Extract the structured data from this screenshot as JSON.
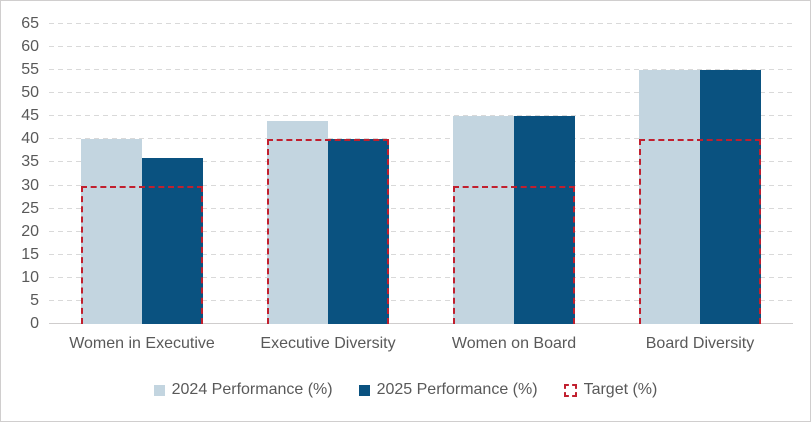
{
  "chart": {
    "background": "#ffffff",
    "frame_border_color": "#d0cece",
    "text_color": "#595959",
    "gridline_color": "#d9d9d9",
    "axis_line_color": "#cfcdcd"
  },
  "chart_data": {
    "type": "bar",
    "title": "",
    "xlabel": "",
    "ylabel": "",
    "categories": [
      "Women in Executive",
      "Executive Diversity",
      "Women on Board",
      "Board Diversity"
    ],
    "series": [
      {
        "name": "2024 Performance (%)",
        "color": "#c3d5e0",
        "values": [
          40,
          44,
          45,
          55
        ]
      },
      {
        "name": "2025 Performance (%)",
        "color": "#0a5280",
        "values": [
          36,
          40,
          45,
          55
        ]
      }
    ],
    "target": {
      "name": "Target (%)",
      "color": "#c11f2e",
      "style": "dashed-outline",
      "values": [
        30,
        40,
        30,
        40
      ]
    },
    "ylim": [
      0,
      65
    ],
    "ytick_step": 5,
    "grid": true,
    "legend_position": "bottom"
  }
}
